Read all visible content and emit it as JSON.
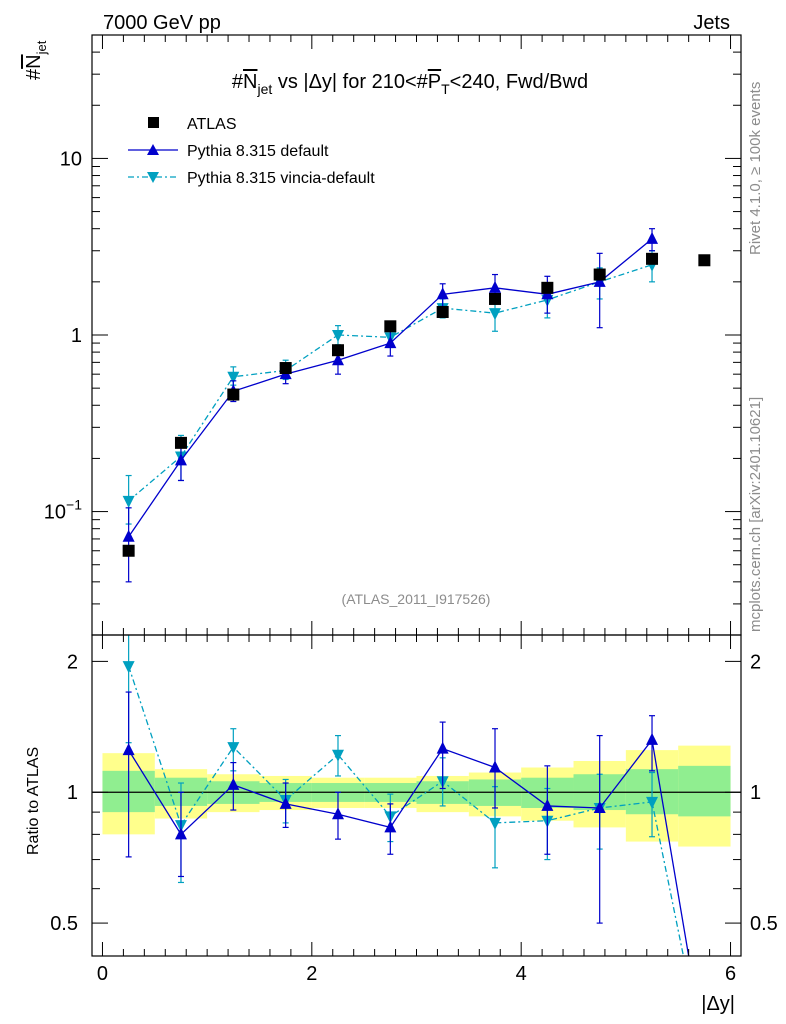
{
  "header": {
    "left": "7000 GeV pp",
    "right": "Jets",
    "side_text": "Rivet 4.1.0, ≥ 100k events",
    "side_text2": "mcplots.cern.ch [arXiv:2401.10621]",
    "watermark": "(ATLAS_2011_I917526)"
  },
  "chart_data": [
    {
      "type": "scatter",
      "panel": "main",
      "title": "#N_jet vs |Δy| for 210<#P_T<240, Fwd/Bwd",
      "title_parts": {
        "a": "#",
        "b": "N",
        "c": "jet",
        "d": " vs |Δy| for 210<#",
        "e": "P",
        "f": "T",
        "g": "<240, Fwd/Bwd"
      },
      "ylabel_parts": {
        "a": "#",
        "b": "N",
        "c": "jet"
      },
      "yscale": "log",
      "ylim": [
        0.02,
        50
      ],
      "y_ticks": [
        {
          "v": 0.1,
          "base": "10",
          "exp": "−1"
        },
        {
          "v": 1,
          "label": "1"
        },
        {
          "v": 10,
          "label": "10"
        }
      ],
      "legend": [
        "ATLAS",
        "Pythia 8.315 default",
        "Pythia 8.315 vincia-default"
      ],
      "x": [
        0.25,
        0.75,
        1.25,
        1.75,
        2.25,
        2.75,
        3.25,
        3.75,
        4.25,
        4.75,
        5.25,
        5.75
      ],
      "series": [
        {
          "name": "ATLAS",
          "color": "#000000",
          "marker": "square",
          "values": [
            0.06,
            0.245,
            0.46,
            0.65,
            0.82,
            1.12,
            1.35,
            1.6,
            1.85,
            2.2,
            2.7,
            2.65
          ]
        },
        {
          "name": "Pythia 8.315 default",
          "color": "#0000cc",
          "marker": "triangle-up",
          "values": [
            0.072,
            0.195,
            0.48,
            0.6,
            0.72,
            0.9,
            1.7,
            1.85,
            1.7,
            2.0,
            3.5
          ],
          "err_lo": [
            0.04,
            0.15,
            0.42,
            0.53,
            0.6,
            0.76,
            1.45,
            1.5,
            1.33,
            1.1,
            3.0
          ],
          "err_hi": [
            0.105,
            0.245,
            0.55,
            0.68,
            0.84,
            1.05,
            1.95,
            2.2,
            2.15,
            2.9,
            4.0
          ]
        },
        {
          "name": "Pythia 8.315 vincia-default",
          "color": "#00a0c0",
          "marker": "triangle-down",
          "values": [
            0.115,
            0.205,
            0.58,
            0.63,
            1.0,
            0.97,
            1.42,
            1.33,
            1.58,
            2.0,
            2.5
          ],
          "err_lo": [
            0.085,
            0.15,
            0.52,
            0.56,
            0.88,
            0.85,
            1.25,
            1.05,
            1.25,
            1.6,
            2.0
          ],
          "err_hi": [
            0.16,
            0.27,
            0.66,
            0.72,
            1.13,
            1.1,
            1.6,
            1.6,
            1.95,
            2.4,
            3.0
          ]
        }
      ]
    },
    {
      "type": "scatter",
      "panel": "ratio",
      "ylabel": "Ratio to ATLAS",
      "xlabel": "|Δy|",
      "yscale": "log",
      "ylim": [
        0.42,
        2.3
      ],
      "xlim": [
        -0.1,
        6.1
      ],
      "x_ticks": [
        0,
        2,
        4,
        6
      ],
      "y_ticks": [
        0.5,
        1,
        2
      ],
      "bin_edges": [
        0,
        0.5,
        1.0,
        1.5,
        2.0,
        2.5,
        3.0,
        3.5,
        4.0,
        4.5,
        5.0,
        5.5,
        6.0
      ],
      "band_inner": [
        [
          0.9,
          1.12
        ],
        [
          0.93,
          1.08
        ],
        [
          0.94,
          1.06
        ],
        [
          0.95,
          1.05
        ],
        [
          0.95,
          1.05
        ],
        [
          0.95,
          1.05
        ],
        [
          0.94,
          1.06
        ],
        [
          0.93,
          1.07
        ],
        [
          0.92,
          1.08
        ],
        [
          0.91,
          1.1
        ],
        [
          0.89,
          1.13
        ],
        [
          0.88,
          1.15
        ]
      ],
      "band_outer": [
        [
          0.8,
          1.23
        ],
        [
          0.87,
          1.13
        ],
        [
          0.9,
          1.1
        ],
        [
          0.91,
          1.09
        ],
        [
          0.92,
          1.08
        ],
        [
          0.92,
          1.08
        ],
        [
          0.9,
          1.09
        ],
        [
          0.88,
          1.11
        ],
        [
          0.86,
          1.14
        ],
        [
          0.83,
          1.18
        ],
        [
          0.77,
          1.25
        ],
        [
          0.75,
          1.28
        ]
      ],
      "series": [
        {
          "name": "Pythia 8.315 default",
          "color": "#0000cc",
          "marker": "triangle-up",
          "x": [
            0.25,
            0.75,
            1.25,
            1.75,
            2.25,
            2.75,
            3.25,
            3.75,
            4.25,
            4.75,
            5.25,
            5.6
          ],
          "values": [
            1.25,
            0.8,
            1.04,
            0.94,
            0.89,
            0.83,
            1.26,
            1.14,
            0.93,
            0.92,
            1.32,
            0.42
          ],
          "err_lo": [
            0.71,
            0.64,
            0.91,
            0.83,
            0.78,
            0.72,
            1.02,
            0.92,
            0.72,
            0.5,
            1.12,
            null
          ],
          "err_hi": [
            1.7,
            1.0,
            1.17,
            1.05,
            1.0,
            0.94,
            1.45,
            1.4,
            1.15,
            1.35,
            1.5,
            null
          ]
        },
        {
          "name": "Pythia 8.315 vincia-default",
          "color": "#00a0c0",
          "marker": "triangle-down",
          "x": [
            0.25,
            0.75,
            1.25,
            1.75,
            2.25,
            2.75,
            3.25,
            3.75,
            4.25,
            4.75,
            5.25,
            5.55
          ],
          "values": [
            1.95,
            0.84,
            1.27,
            0.96,
            1.22,
            0.88,
            1.06,
            0.85,
            0.86,
            0.92,
            0.95,
            0.42
          ],
          "err_lo": [
            1.3,
            0.62,
            1.12,
            0.85,
            1.09,
            0.77,
            0.93,
            0.67,
            0.7,
            0.74,
            0.79,
            null
          ],
          "err_hi": [
            2.35,
            1.05,
            1.4,
            1.07,
            1.35,
            0.99,
            1.2,
            1.03,
            1.02,
            1.1,
            1.11,
            null
          ]
        }
      ]
    }
  ]
}
